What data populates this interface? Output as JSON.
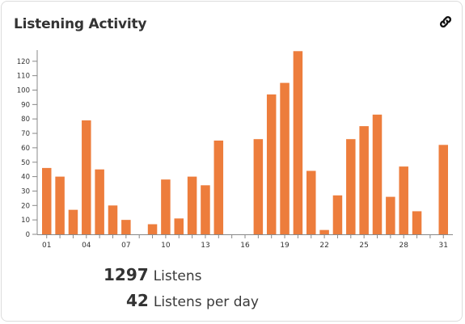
{
  "title": "Listening Activity",
  "link_icon": "link-icon",
  "colors": {
    "bar": "#ed7d3c",
    "axis": "#888888",
    "text": "#333333"
  },
  "chart_data": {
    "type": "bar",
    "categories": [
      "01",
      "02",
      "03",
      "04",
      "05",
      "06",
      "07",
      "08",
      "09",
      "10",
      "11",
      "12",
      "13",
      "14",
      "15",
      "16",
      "17",
      "18",
      "19",
      "20",
      "21",
      "22",
      "23",
      "24",
      "25",
      "26",
      "27",
      "28",
      "29",
      "30",
      "31"
    ],
    "values": [
      46,
      40,
      17,
      79,
      45,
      20,
      10,
      0,
      7,
      38,
      11,
      40,
      34,
      65,
      0,
      0,
      66,
      97,
      105,
      127,
      44,
      3,
      27,
      66,
      75,
      83,
      26,
      47,
      16,
      0,
      62
    ],
    "tick_labels": [
      "01",
      "04",
      "07",
      "10",
      "13",
      "16",
      "19",
      "22",
      "25",
      "28",
      "31"
    ],
    "ytick_labels": [
      "0",
      "10",
      "20",
      "30",
      "40",
      "50",
      "60",
      "70",
      "80",
      "90",
      "100",
      "110",
      "120"
    ],
    "ylim": [
      0,
      130
    ],
    "xlabel": "",
    "ylabel": ""
  },
  "stats": [
    {
      "value": "1297",
      "label": "Listens"
    },
    {
      "value": "42",
      "label": "Listens per day"
    }
  ]
}
